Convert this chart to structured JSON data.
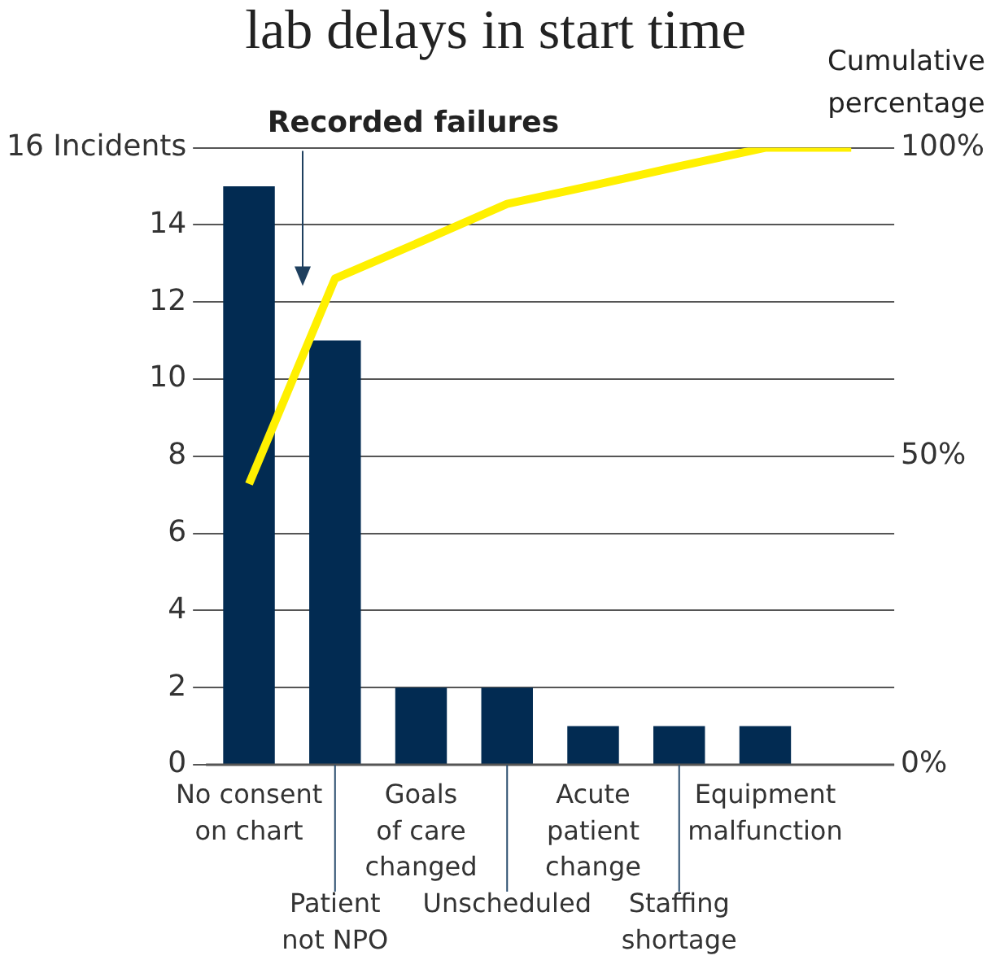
{
  "chart_data": {
    "type": "bar",
    "title": "lab delays in start time",
    "y2label": "Cumulative\npercentage",
    "categories": [
      "No consent\non chart",
      "Patient\nnot NPO",
      "Goals\nof care\nchanged",
      "Unscheduled",
      "Acute\npatient\nchange",
      "Staffing\nshortage",
      "Equipment\nmalfunction",
      null
    ],
    "series": [
      {
        "color": "#022b52",
        "values": [
          15,
          11,
          2,
          2,
          1,
          1,
          1,
          null
        ]
      },
      {
        "type": "line",
        "axis": "y2",
        "color": "#fff000",
        "values": [
          45.5,
          78.8,
          84.8,
          90.9,
          93.9,
          97,
          100,
          100
        ]
      }
    ],
    "ylim": [
      0,
      16
    ],
    "yticks": [
      0,
      2,
      4,
      6,
      8,
      10,
      12,
      14,
      {
        "value": 16,
        "label": "16 Incidents"
      }
    ],
    "y2lim": [
      0,
      100
    ],
    "y2ticks": [
      {
        "value": 0,
        "label": "0%"
      },
      {
        "value": 50,
        "label": "50%"
      },
      {
        "value": 100,
        "label": "100%"
      }
    ],
    "grid": "y",
    "legend": false,
    "marker": "none",
    "line_style": "solid",
    "annotations": [
      "Recorded failures"
    ]
  }
}
